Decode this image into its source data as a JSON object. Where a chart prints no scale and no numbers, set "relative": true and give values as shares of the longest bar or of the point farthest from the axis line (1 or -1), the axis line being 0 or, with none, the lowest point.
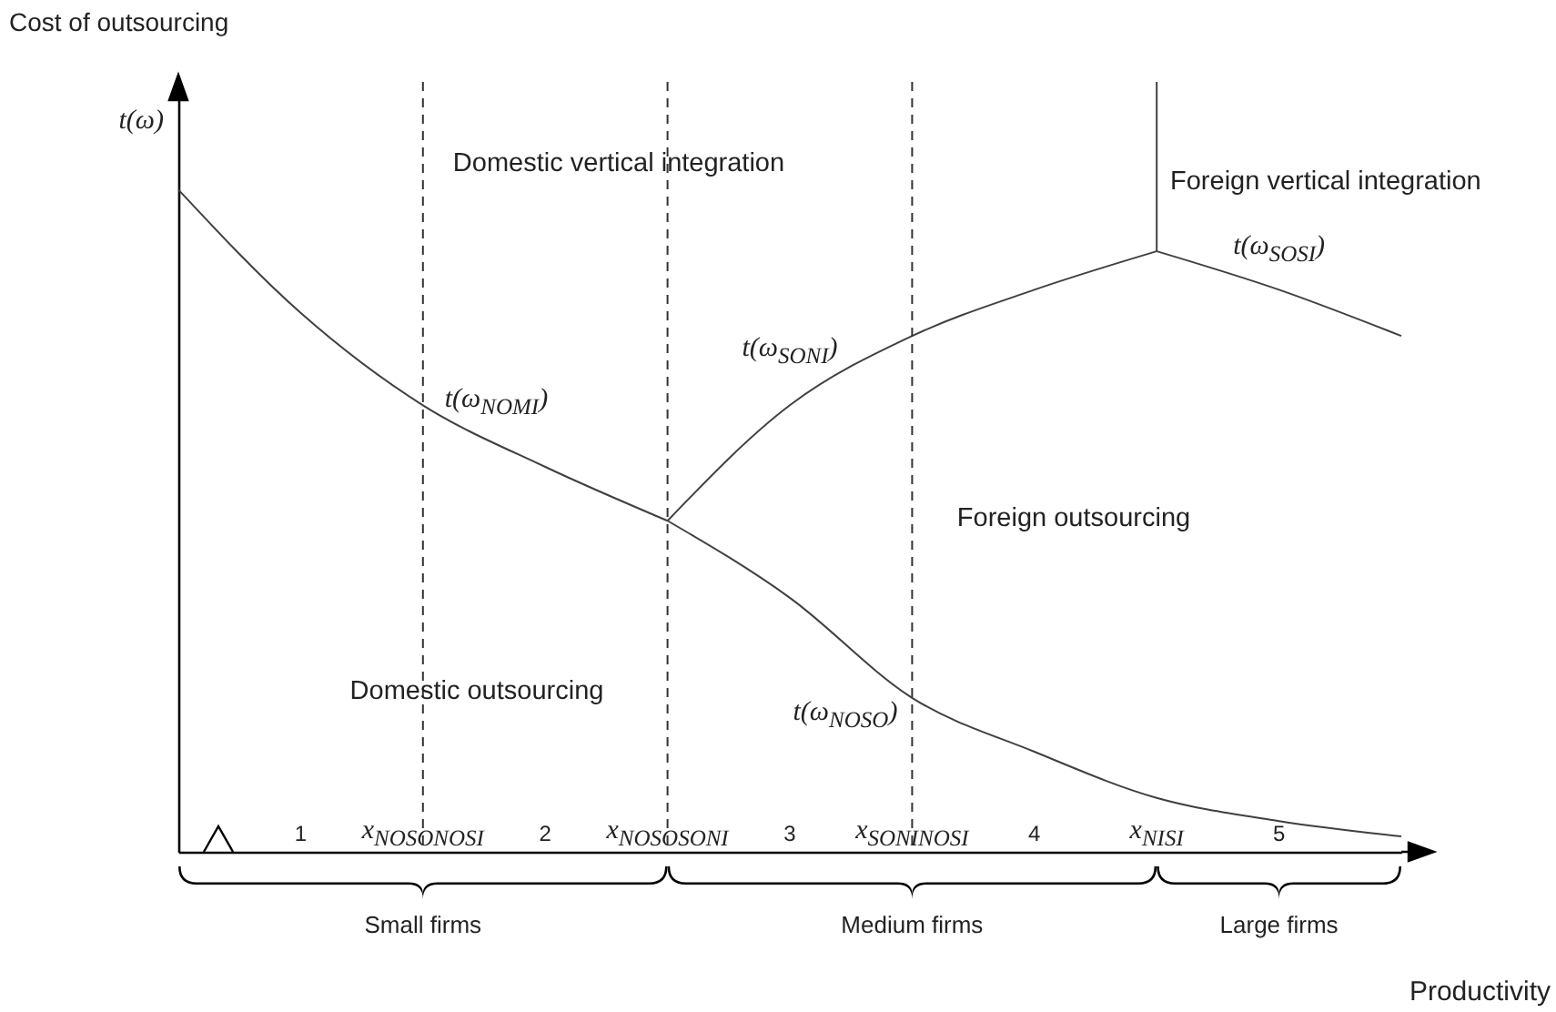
{
  "chart_data": {
    "type": "line",
    "relative": true,
    "title": "Cost of outsourcing",
    "ylabel": "t(ω)",
    "xlabel": "Productivity",
    "categories": [
      null,
      "1",
      "x$_{NOSONOSI}$",
      "2",
      "x$_{NOSOSONI}$",
      "3",
      "x$_{SONINOSI}$",
      "4",
      "x$_{NISI}$",
      "5",
      null
    ],
    "series": [
      {
        "name": "t(ω$_{NOMI}$)",
        "color": "#404040",
        "values": [
          0.86,
          0.7,
          0.58,
          0.5,
          0.43,
          null,
          null,
          null,
          null,
          null,
          null
        ]
      },
      {
        "name": "t(ω$_{NOSO}$)",
        "color": "#404040",
        "values": [
          null,
          null,
          null,
          null,
          0.43,
          0.33,
          0.2,
          0.13,
          0.07,
          0.04,
          0.02
        ]
      },
      {
        "name": "t(ω$_{SONI}$)",
        "color": "#404040",
        "values": [
          null,
          null,
          null,
          null,
          0.43,
          0.58,
          0.67,
          0.73,
          0.78,
          null,
          null
        ]
      },
      {
        "name": "t(ω$_{SOSI}$)",
        "color": "#404040",
        "values": [
          null,
          null,
          null,
          null,
          null,
          null,
          null,
          null,
          0.78,
          0.73,
          0.67
        ]
      },
      {
        "color": "#404040",
        "x": [
          "x$_{NISI}$",
          "x$_{NISI}$"
        ],
        "values": [
          0.78,
          1
        ]
      }
    ],
    "ref_lines": [
      {
        "axis": "x",
        "value": "x$_{NOSONOSI}$",
        "line_style": "dashed"
      },
      {
        "axis": "x",
        "value": "x$_{NOSOSONI}$",
        "line_style": "dashed"
      },
      {
        "axis": "x",
        "value": "x$_{SONINOSI}$",
        "line_style": "dashed"
      }
    ],
    "annotations": [
      "Domestic vertical integration",
      "Foreign vertical integration",
      "Foreign outsourcing",
      "Domestic outsourcing",
      "Small firms",
      "Medium firms",
      "Large firms"
    ]
  }
}
